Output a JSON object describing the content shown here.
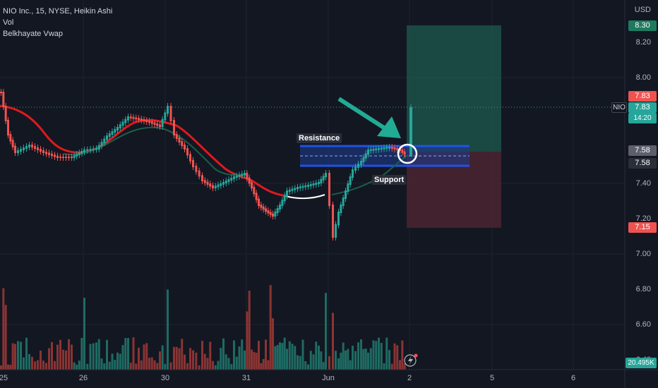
{
  "legend": {
    "symbol_line": "NIO Inc., 15, NYSE, Heikin Ashi",
    "vol_label": "Vol",
    "indicator_label": "Belkhayate Vwap"
  },
  "price_axis": {
    "currency": "USD",
    "ticks": [
      "8.20",
      "8.00",
      "7.40",
      "7.20",
      "7.00",
      "6.80",
      "6.60",
      "6.40"
    ]
  },
  "badges": {
    "target": "8.30",
    "last_price": "7.83",
    "last_price_2": "7.83",
    "countdown": "14:20",
    "entry_a": "7.58",
    "entry_b": "7.58",
    "stop": "7.15",
    "volume": "20.495K",
    "symbol": "NIO"
  },
  "x_axis": {
    "labels": [
      "25",
      "26",
      "30",
      "31",
      "Jun",
      "2",
      "5",
      "6"
    ]
  },
  "annotations": {
    "resistance": "Resistance",
    "support": "Support"
  },
  "colors": {
    "background": "#131722",
    "up": "#26a69a",
    "down": "#ef5350",
    "target_zone": "#1e5a4e",
    "stop_zone": "#4a2430",
    "box_blue": "#1e53e5",
    "vwap_red": "#e0191e",
    "vwap_green": "#1b5e4a",
    "arrow": "#22ab94"
  },
  "icons": [
    "lightning-icon",
    "arrow-icon"
  ]
}
